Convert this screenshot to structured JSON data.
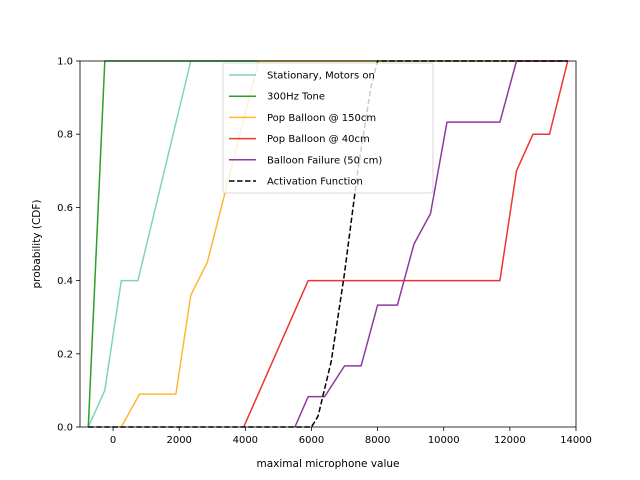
{
  "chart_data": {
    "type": "line",
    "xlabel": "maximal microphone value",
    "ylabel": "probability (CDF)",
    "xlim": [
      -1000,
      14000
    ],
    "ylim": [
      0,
      1.0
    ],
    "xticks": [
      0,
      2000,
      4000,
      6000,
      8000,
      10000,
      12000,
      14000
    ],
    "yticks": [
      0.0,
      0.2,
      0.4,
      0.6,
      0.8,
      1.0
    ],
    "xtick_labels": [
      "0",
      "2000",
      "4000",
      "6000",
      "8000",
      "10000",
      "12000",
      "14000"
    ],
    "ytick_labels": [
      "0.0",
      "0.2",
      "0.4",
      "0.6",
      "0.8",
      "1.0"
    ],
    "grid": false,
    "legend_position": "upper-center",
    "series": [
      {
        "name": "Stationary, Motors on",
        "color": "#7fd4b6",
        "style": "solid",
        "x": [
          -750,
          -250,
          250,
          750,
          2350,
          13750
        ],
        "y": [
          0.0,
          0.1,
          0.4,
          0.4,
          1.0,
          1.0
        ]
      },
      {
        "name": "300Hz Tone",
        "color": "#2ca02c",
        "style": "solid",
        "x": [
          -750,
          -250,
          13750
        ],
        "y": [
          0.0,
          1.0,
          1.0
        ]
      },
      {
        "name": "Pop Balloon @ 150cm",
        "color": "#ffb733",
        "style": "solid",
        "x": [
          250,
          800,
          1900,
          2350,
          2850,
          4400,
          13750
        ],
        "y": [
          0.0,
          0.09,
          0.09,
          0.36,
          0.45,
          1.0,
          1.0
        ]
      },
      {
        "name": "Pop Balloon @ 40cm",
        "color": "#ee3333",
        "style": "solid",
        "x": [
          3950,
          5900,
          11700,
          12200,
          12700,
          13200,
          13750
        ],
        "y": [
          0.0,
          0.4,
          0.4,
          0.7,
          0.8,
          0.8,
          1.0
        ]
      },
      {
        "name": "Balloon Failure (50 cm)",
        "color": "#8e3a9e",
        "style": "solid",
        "x": [
          5500,
          5900,
          6400,
          7000,
          7500,
          8000,
          8600,
          9100,
          9600,
          10100,
          11700,
          12200,
          13750
        ],
        "y": [
          0.0,
          0.083,
          0.083,
          0.167,
          0.167,
          0.333,
          0.333,
          0.5,
          0.583,
          0.833,
          0.833,
          1.0,
          1.0
        ]
      },
      {
        "name": "Activation Function",
        "color": "#000000",
        "style": "dashed",
        "x": [
          -750,
          6000,
          6200,
          6600,
          7000,
          7400,
          7800,
          8000,
          13750
        ],
        "y": [
          0.0,
          0.0,
          0.03,
          0.18,
          0.42,
          0.7,
          0.93,
          1.0,
          1.0
        ]
      }
    ]
  }
}
